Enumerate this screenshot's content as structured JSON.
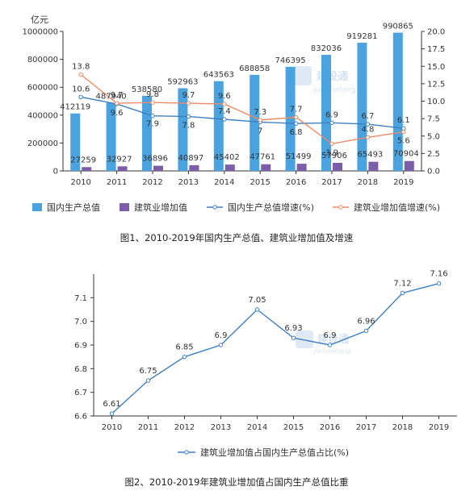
{
  "chart_data": [
    {
      "type": "bar",
      "title": "",
      "caption": "图1、2010-2019年国内生产总值、建筑业增加值及增速",
      "unit_label": "亿元",
      "categories": [
        "2010",
        "2011",
        "2012",
        "2013",
        "2014",
        "2015",
        "2016",
        "2017",
        "2018",
        "2019"
      ],
      "ylim_left": [
        0,
        1000000
      ],
      "yticks_left": [
        "0",
        "200000",
        "400000",
        "600000",
        "800000",
        "1000000"
      ],
      "ylim_right": [
        0,
        20
      ],
      "yticks_right": [
        "0.0",
        "2.5",
        "5.0",
        "7.5",
        "10.0",
        "12.5",
        "15.0",
        "17.5",
        "20.0"
      ],
      "series": [
        {
          "name": "国内生产总值",
          "kind": "bar",
          "axis": "left",
          "color": "#4aa3df",
          "values": [
            412119,
            487940,
            538580,
            592963,
            643563,
            688858,
            746395,
            832036,
            919281,
            990865
          ],
          "labels": [
            "412119",
            "487940",
            "538580",
            "592963",
            "643563",
            "688858",
            "746395",
            "832036",
            "919281",
            "990865"
          ]
        },
        {
          "name": "建筑业增加值",
          "kind": "bar",
          "axis": "left",
          "color": "#7b5ea7",
          "values": [
            27259,
            32927,
            36896,
            40897,
            45402,
            47761,
            51499,
            57906,
            65493,
            70904
          ],
          "labels": [
            "27259",
            "32927",
            "36896",
            "40897",
            "45402",
            "47761",
            "51499",
            "57906",
            "65493",
            "70904"
          ]
        },
        {
          "name": "国内生产总值增速(%)",
          "kind": "line",
          "axis": "right",
          "color": "#3f7fc1",
          "values": [
            10.6,
            9.6,
            7.9,
            7.8,
            7.4,
            7,
            6.8,
            6.9,
            6.7,
            6.1
          ],
          "labels": [
            "10.6",
            "9.6",
            "7.9",
            "7.8",
            "7.4",
            "7",
            "6.8",
            "6.9",
            "6.7",
            "6.1"
          ]
        },
        {
          "name": "建筑业增加值增速(%)",
          "kind": "line",
          "axis": "right",
          "color": "#ec8a65",
          "values": [
            13.8,
            9.7,
            9.8,
            9.7,
            9.6,
            7.3,
            7.7,
            3.9,
            4.8,
            5.6
          ],
          "labels": [
            "13.8",
            "9.7",
            "9.8",
            "9.7",
            "9.6",
            "7.3",
            "7.7",
            "3.9",
            "4.8",
            "5.6"
          ]
        }
      ]
    },
    {
      "type": "line",
      "title": "",
      "caption": "图2、2010-2019年建筑业增加值占国内生产总值比重",
      "categories": [
        "2010",
        "2011",
        "2012",
        "2013",
        "2014",
        "2015",
        "2016",
        "2017",
        "2018",
        "2019"
      ],
      "ylim": [
        6.6,
        7.2
      ],
      "yticks": [
        "6.6",
        "6.7",
        "6.8",
        "6.9",
        "7.0",
        "7.1"
      ],
      "series": [
        {
          "name": "建筑业增加值占国内生产总值占比(%)",
          "color": "#3f7fc1",
          "values": [
            6.61,
            6.75,
            6.85,
            6.9,
            7.05,
            6.93,
            6.9,
            6.96,
            7.12,
            7.16
          ],
          "labels": [
            "6.61",
            "6.75",
            "6.85",
            "6.9",
            "7.05",
            "6.93",
            "6.9",
            "6.96",
            "7.12",
            "7.16"
          ]
        }
      ]
    }
  ],
  "watermark": {
    "brand": "建设通",
    "domain": "jianshetong"
  }
}
